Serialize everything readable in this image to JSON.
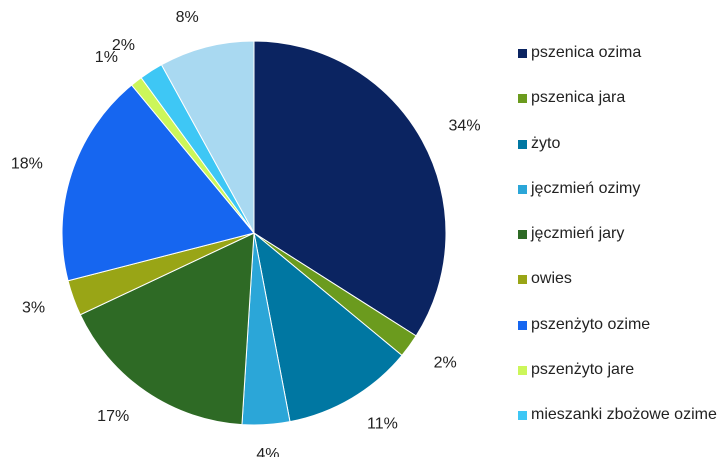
{
  "chart_data": {
    "type": "pie",
    "categories": [
      "pszenica ozima",
      "pszenica jara",
      "żyto",
      "jęczmień ozimy",
      "jęczmień jary",
      "owies",
      "pszenżyto ozime",
      "pszenżyto jare",
      "mieszanki zbożowe ozime",
      null
    ],
    "values": [
      34,
      2,
      11,
      4,
      17,
      3,
      18,
      1,
      2,
      8
    ],
    "value_labels": [
      "34%",
      "2%",
      "11%",
      "4%",
      "17%",
      "3%",
      "18%",
      "1%",
      "2%",
      "8%"
    ],
    "colors": [
      "#0b2461",
      "#6b9b1e",
      "#0077a2",
      "#2ba6d8",
      "#2e6a25",
      "#99a516",
      "#1666f0",
      "#ccf65a",
      "#3ec7f5",
      "#a9d9f1"
    ],
    "legend": "right"
  }
}
